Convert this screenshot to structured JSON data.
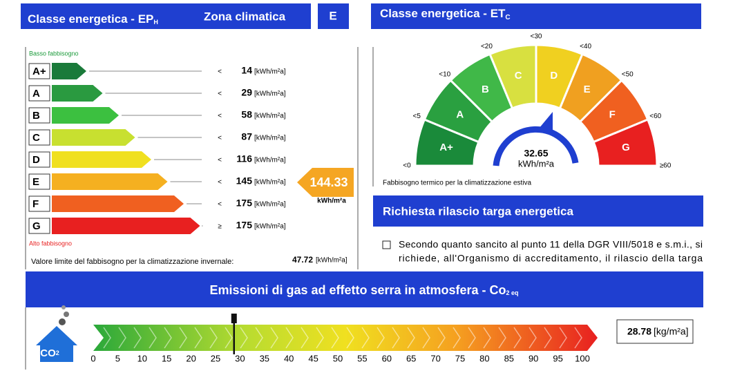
{
  "ep_header": {
    "title": "Classe energetica - EP",
    "title_sub": "H",
    "zone_label": "Zona climatica",
    "zone_value": "E"
  },
  "ep_scale": {
    "top_label": "Basso fabbisogno",
    "bottom_label": "Alto fabbisogno",
    "unit": "[kWh/m²a]",
    "classes": [
      {
        "label": "A+",
        "op": "<",
        "limit": 14
      },
      {
        "label": "A",
        "op": "<",
        "limit": 29
      },
      {
        "label": "B",
        "op": "<",
        "limit": 58
      },
      {
        "label": "C",
        "op": "<",
        "limit": 87
      },
      {
        "label": "D",
        "op": "<",
        "limit": 116
      },
      {
        "label": "E",
        "op": "<",
        "limit": 145
      },
      {
        "label": "F",
        "op": "<",
        "limit": 175
      },
      {
        "label": "G",
        "op": "≥",
        "limit": 175
      }
    ],
    "current_value": 144.33,
    "current_unit": "kWh/m²a",
    "limit_label": "Valore limite del fabbisogno per la climatizzazione invernale:",
    "limit_value": 47.72,
    "limit_unit": "[kWh/m²a]"
  },
  "et_header": {
    "title": "Classe energetica - ET",
    "title_sub": "C"
  },
  "et_gauge": {
    "classes": [
      "A+",
      "A",
      "B",
      "C",
      "D",
      "E",
      "F",
      "G"
    ],
    "thresholds": [
      "<0",
      "<5",
      "<10",
      "<20",
      "<30",
      "<40",
      "<50",
      "<60",
      "≥60"
    ],
    "value": 32.65,
    "unit": "kWh/m²a",
    "caption": "Fabbisogno termico per la climatizzazione estiva"
  },
  "request": {
    "title": "Richiesta rilascio targa energetica",
    "text_line1": "Secondo quanto sancito al punto 11 della DGR VIII/5018 e s.m.i., si",
    "text_line2": "richiede, all'Organismo di accreditamento, il rilascio della targa"
  },
  "emissions": {
    "title": "Emissioni di gas ad effetto serra in atmosfera - Co",
    "title_sub": "2 eq",
    "icon_label": "CO",
    "icon_sub": "2",
    "ticks": [
      0,
      5,
      10,
      15,
      20,
      25,
      30,
      35,
      40,
      45,
      50,
      55,
      60,
      65,
      70,
      75,
      80,
      85,
      90,
      95,
      100
    ],
    "value": 28.78,
    "unit": "[kg/m²a]"
  }
}
